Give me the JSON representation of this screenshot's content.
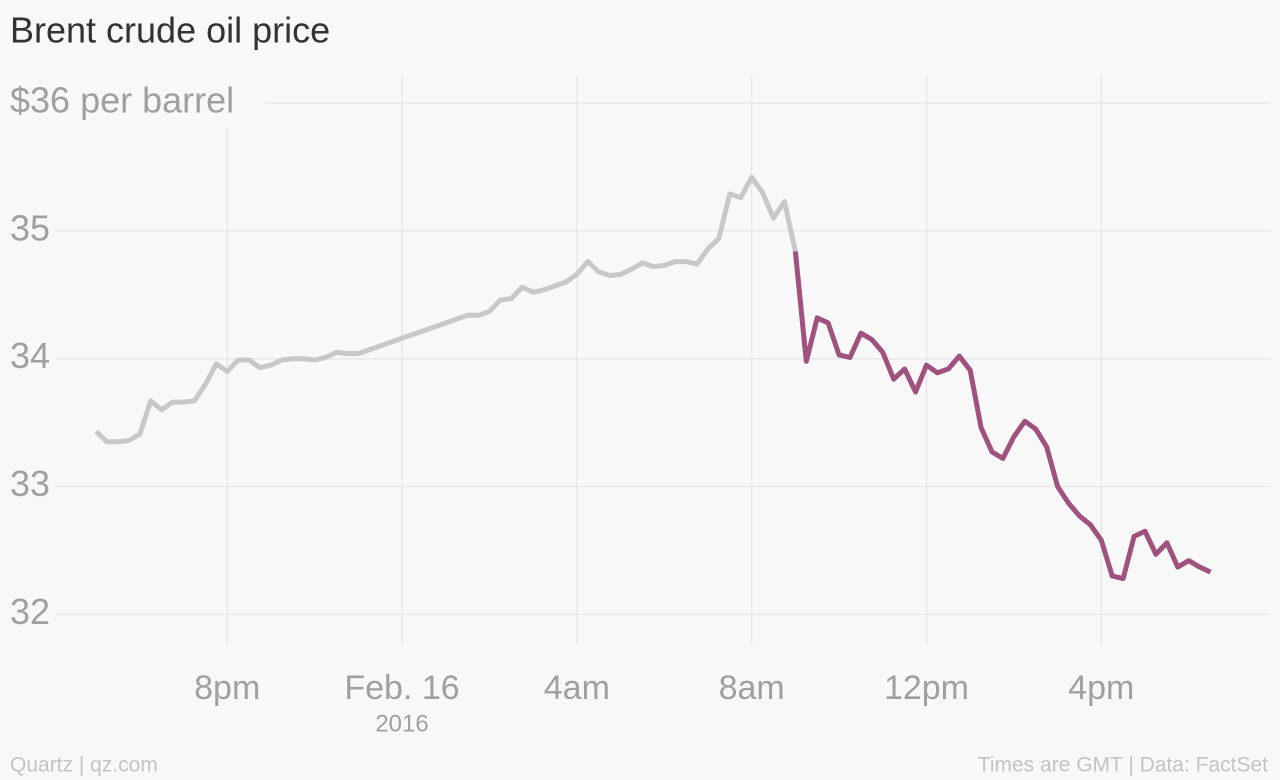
{
  "chart_data": {
    "type": "line",
    "title": "Brent crude oil price",
    "source": "Quartz | qz.com",
    "note": "Times are GMT | Data: FactSet",
    "x": [
      -7,
      -6.75,
      -6.5,
      -6.25,
      -6,
      -5.75,
      -5.5,
      -5.25,
      -5,
      -4.75,
      -4.5,
      -4.25,
      -4,
      -3.75,
      -3.5,
      -3.25,
      -3,
      -2.75,
      -2.5,
      -2.25,
      -2,
      -1.75,
      -1.5,
      -1.25,
      -1,
      1.5,
      1.75,
      2,
      2.25,
      2.5,
      2.75,
      3,
      3.25,
      3.5,
      3.75,
      4,
      4.25,
      4.5,
      4.75,
      5,
      5.25,
      5.5,
      5.75,
      6,
      6.25,
      6.5,
      6.75,
      7,
      7.25,
      7.5,
      7.75,
      8,
      8.25,
      8.5,
      8.75,
      9,
      9.25,
      9.5,
      9.75,
      10,
      10.25,
      10.5,
      10.75,
      11,
      11.25,
      11.5,
      11.75,
      12,
      12.25,
      12.5,
      12.75,
      13,
      13.25,
      13.5,
      13.75,
      14,
      14.25,
      14.5,
      14.75,
      15,
      15.25,
      15.5,
      15.75,
      16,
      16.25,
      16.5,
      16.75,
      17,
      17.25,
      17.5,
      17.75,
      18,
      18.25,
      18.5
    ],
    "series": [
      {
        "color": "#c8c8c8",
        "values": [
          33.43,
          33.35,
          33.35,
          33.36,
          33.41,
          33.67,
          33.6,
          33.66,
          33.66,
          33.67,
          33.8,
          33.96,
          33.9,
          33.99,
          33.99,
          33.93,
          33.95,
          33.99,
          34.0,
          34.0,
          33.99,
          34.01,
          34.05,
          34.04,
          34.04,
          34.34,
          34.34,
          34.37,
          34.46,
          34.47,
          34.56,
          34.52,
          34.54,
          34.57,
          34.6,
          34.66,
          34.76,
          34.68,
          34.65,
          34.66,
          34.7,
          34.75,
          34.72,
          34.73,
          34.76,
          34.76,
          34.74,
          34.86,
          34.94,
          35.29,
          35.26,
          35.42,
          35.3,
          35.1,
          35.23,
          34.84,
          null,
          null,
          null,
          null,
          null,
          null,
          null,
          null,
          null,
          null,
          null,
          null,
          null,
          null,
          null,
          null,
          null,
          null,
          null,
          null,
          null,
          null,
          null,
          null,
          null,
          null,
          null,
          null,
          null,
          null,
          null,
          null,
          null,
          null,
          null,
          null,
          null,
          null
        ]
      },
      {
        "color": "#a0527f",
        "values": [
          null,
          null,
          null,
          null,
          null,
          null,
          null,
          null,
          null,
          null,
          null,
          null,
          null,
          null,
          null,
          null,
          null,
          null,
          null,
          null,
          null,
          null,
          null,
          null,
          null,
          null,
          null,
          null,
          null,
          null,
          null,
          null,
          null,
          null,
          null,
          null,
          null,
          null,
          null,
          null,
          null,
          null,
          null,
          null,
          null,
          null,
          null,
          null,
          null,
          null,
          null,
          null,
          null,
          null,
          null,
          34.84,
          33.98,
          34.32,
          34.28,
          34.03,
          34.01,
          34.2,
          34.15,
          34.05,
          33.84,
          33.92,
          33.74,
          33.95,
          33.89,
          33.92,
          34.02,
          33.91,
          33.46,
          33.27,
          33.22,
          33.39,
          33.51,
          33.45,
          33.31,
          33.0,
          32.87,
          32.77,
          32.7,
          32.58,
          32.3,
          32.28,
          32.61,
          32.65,
          32.47,
          32.56,
          32.37,
          32.42,
          32.37,
          32.33
        ]
      }
    ],
    "xlim": [
      -7.94,
      19.86
    ],
    "xticks": [
      {
        "value": -4,
        "label": "8pm"
      },
      {
        "value": 0,
        "label": "Feb. 16",
        "sublabel": "2016"
      },
      {
        "value": 4,
        "label": "4am"
      },
      {
        "value": 8,
        "label": "8am"
      },
      {
        "value": 12,
        "label": "12pm"
      },
      {
        "value": 16,
        "label": "4pm"
      }
    ],
    "ylim": [
      31.76,
      36.22
    ],
    "yticks": [
      32,
      33,
      34,
      35,
      {
        "value": 36,
        "label": "$36 per barrel"
      }
    ],
    "grid": true
  }
}
